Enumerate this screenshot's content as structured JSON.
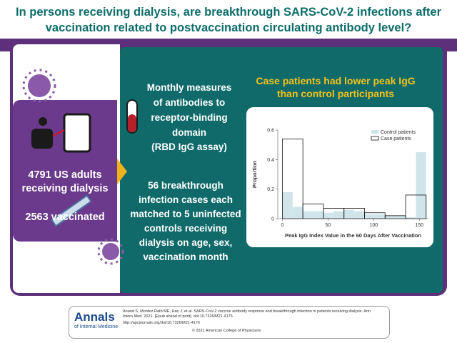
{
  "header": {
    "title": "In persons receiving dialysis, are breakthrough SARS-CoV-2 infections after vaccination related to postvaccination circulating antibody level?"
  },
  "population": {
    "adults": "4791 US adults receiving dialysis",
    "vaccinated": "2563 vaccinated"
  },
  "methods": {
    "measures": "Monthly measures of antibodies to receptor-binding domain",
    "assay": "(RBD IgG assay)",
    "design": "56 breakthrough infection cases each matched to 5 uninfected controls receiving dialysis on age, sex, vaccination month"
  },
  "chart_data": {
    "type": "histogram",
    "title": "Case patients had lower peak IgG than control participants",
    "xlabel": "Peak IgG Index Value in the 60 Days After Vaccination",
    "ylabel": "Proportion",
    "xlim": [
      -5,
      160
    ],
    "ylim": [
      0,
      0.6
    ],
    "xticks": [
      0,
      50,
      100,
      150
    ],
    "yticks": [
      0,
      0.2,
      0.4,
      0.6
    ],
    "legend": "upper right",
    "series": [
      {
        "name": "Control patients",
        "color": "#cfe5ea",
        "bins": [
          0,
          11.25,
          22.5,
          33.75,
          45,
          56.25,
          67.5,
          78.75,
          90,
          101.25,
          112.5,
          123.75,
          135,
          146.25,
          157.5
        ],
        "values": [
          0.18,
          0.08,
          0.05,
          0.05,
          0.04,
          0.05,
          0.06,
          0.05,
          0.03,
          0.03,
          0.02,
          0.02,
          0.01,
          0.45
        ]
      },
      {
        "name": "Case patients",
        "color": "#111111",
        "bins": [
          0,
          22.5,
          45,
          67.5,
          90,
          112.5,
          135,
          157.5
        ],
        "values": [
          0.54,
          0.1,
          0.07,
          0.07,
          0.04,
          0.02,
          0.16
        ]
      }
    ]
  },
  "footer": {
    "logo": "Annals",
    "logo_sub": "of Internal Medicine",
    "citation": "Anand S, Montez-Rath ME, Han J, et al. SARS-CoV-2 vaccine antibody response and breakthrough infection in patients receiving dialysis. Ann Intern Med. 2021. [Epub ahead of print]. doi:10.7326/M21-4176",
    "url": "http://apcjournals.org/doi/10.7326/M21-4176",
    "copyright": "© 2021 American College of Physicians"
  }
}
